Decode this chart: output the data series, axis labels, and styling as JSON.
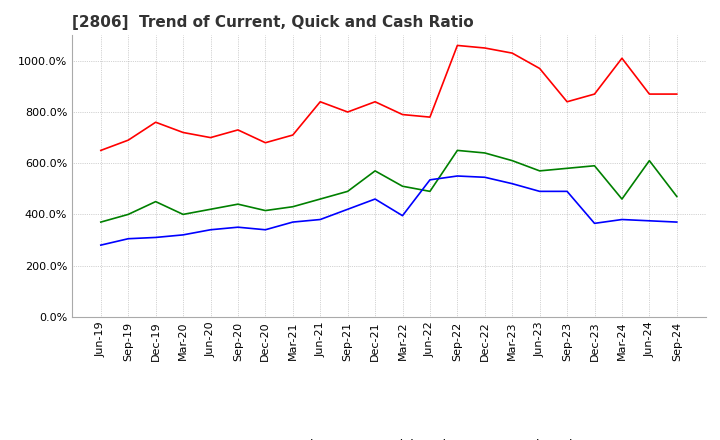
{
  "title": "[2806]  Trend of Current, Quick and Cash Ratio",
  "x_labels": [
    "Jun-19",
    "Sep-19",
    "Dec-19",
    "Mar-20",
    "Jun-20",
    "Sep-20",
    "Dec-20",
    "Mar-21",
    "Jun-21",
    "Sep-21",
    "Dec-21",
    "Mar-22",
    "Jun-22",
    "Sep-22",
    "Dec-22",
    "Mar-23",
    "Jun-23",
    "Sep-23",
    "Dec-23",
    "Mar-24",
    "Jun-24",
    "Sep-24"
  ],
  "current_ratio": [
    650,
    690,
    760,
    720,
    700,
    730,
    680,
    710,
    840,
    800,
    840,
    790,
    780,
    1060,
    1050,
    1030,
    970,
    840,
    870,
    1010,
    870,
    870
  ],
  "quick_ratio": [
    370,
    400,
    450,
    400,
    420,
    440,
    415,
    430,
    460,
    490,
    570,
    510,
    490,
    650,
    640,
    610,
    570,
    580,
    590,
    460,
    610,
    470
  ],
  "cash_ratio": [
    280,
    305,
    310,
    320,
    340,
    350,
    340,
    370,
    380,
    420,
    460,
    395,
    535,
    550,
    545,
    520,
    490,
    490,
    365,
    380,
    375,
    370
  ],
  "ylim": [
    0,
    1100
  ],
  "yticks": [
    0,
    200,
    400,
    600,
    800,
    1000
  ],
  "current_color": "#ff0000",
  "quick_color": "#008000",
  "cash_color": "#0000ff",
  "background_color": "#ffffff",
  "plot_bg_color": "#ffffff",
  "grid_color": "#aaaaaa",
  "title_fontsize": 11,
  "tick_fontsize": 8,
  "legend_labels": [
    "Current Ratio",
    "Quick Ratio",
    "Cash Ratio"
  ]
}
